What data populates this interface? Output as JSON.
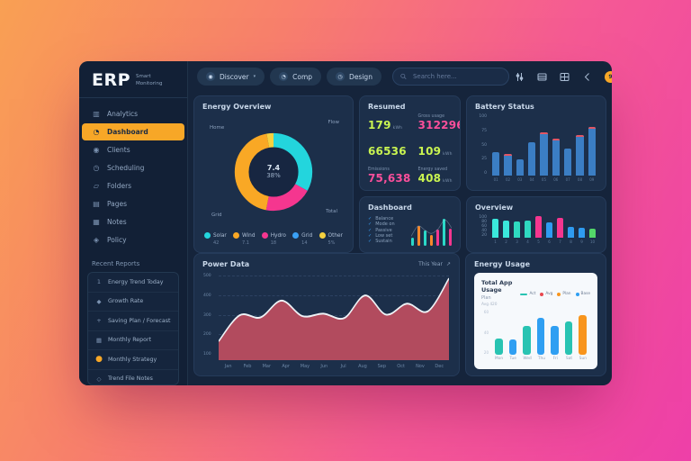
{
  "background": {
    "gradient_from": "#f9a053",
    "gradient_to": "#ee3fa8"
  },
  "app": {
    "logo": "ERP",
    "logo_sub_line1": "Smart",
    "logo_sub_line2": "Monitoring"
  },
  "sidebar": {
    "items": [
      {
        "icon": "analytics-icon",
        "glyph": "▥",
        "label": "Analytics",
        "active": false
      },
      {
        "icon": "dashboard-icon",
        "glyph": "◔",
        "label": "Dashboard",
        "active": true
      },
      {
        "icon": "clients-icon",
        "glyph": "◉",
        "label": "Clients",
        "active": false
      },
      {
        "icon": "scheduling-icon",
        "glyph": "◷",
        "label": "Scheduling",
        "active": false
      },
      {
        "icon": "folders-icon",
        "glyph": "▱",
        "label": "Folders",
        "active": false
      },
      {
        "icon": "pages-icon",
        "glyph": "▤",
        "label": "Pages",
        "active": false
      },
      {
        "icon": "notes-icon",
        "glyph": "▦",
        "label": "Notes",
        "active": false
      },
      {
        "icon": "policy-icon",
        "glyph": "◈",
        "label": "Policy",
        "active": false
      }
    ],
    "section_label": "Recent Reports",
    "report_items": [
      {
        "icon": "trend-icon",
        "glyph": "1",
        "label": "Energy Trend Today",
        "accent": false
      },
      {
        "icon": "growth-icon",
        "glyph": "◆",
        "label": "Growth Rate",
        "accent": false
      },
      {
        "icon": "entry-icon",
        "glyph": "+",
        "label": "Saving Plan / Forecast",
        "accent": false
      },
      {
        "icon": "report-icon",
        "glyph": "▦",
        "label": "Monthly Report",
        "accent": false
      },
      {
        "icon": "strategy-icon",
        "glyph": "●",
        "label": "Monthly Strategy",
        "accent": true
      },
      {
        "icon": "files-icon",
        "glyph": "◇",
        "label": "Trend File Notes",
        "accent": false
      }
    ]
  },
  "topbar": {
    "buttons": [
      {
        "icon": "globe-icon",
        "glyph": "◉",
        "label": "Discover",
        "caret": "▾"
      },
      {
        "icon": "chat-icon",
        "glyph": "◔",
        "label": "Comp",
        "caret": ""
      },
      {
        "icon": "clock-icon",
        "glyph": "◷",
        "label": "Design",
        "caret": ""
      }
    ],
    "search_placeholder": "Search here...",
    "badge_count": "9"
  },
  "chart_data": [
    {
      "id": "energy-donut",
      "type": "pie",
      "title": "Energy Overview",
      "center_value": "7.4",
      "center_label": "38%",
      "segments": [
        {
          "label": "Flow",
          "value": 33,
          "color": "#23d5dd"
        },
        {
          "label": "Total",
          "value": 20,
          "color": "#f5368f"
        },
        {
          "label": "Grid",
          "value": 44,
          "color": "#f9a825"
        },
        {
          "label": "Peak",
          "value": 3,
          "color": "#f5d13f"
        }
      ],
      "callouts": {
        "top_left": "Home",
        "top_right": "Flow",
        "bottom_right": "Total",
        "bottom_left": "Grid"
      },
      "legend": [
        {
          "label": "Solar",
          "value": "42",
          "color": "#23d5dd"
        },
        {
          "label": "Wind",
          "value": "7.1",
          "color": "#f9a825"
        },
        {
          "label": "Hydro",
          "value": "18",
          "color": "#f5368f"
        },
        {
          "label": "Grid",
          "value": "14",
          "color": "#3aa0f5"
        },
        {
          "label": "Other",
          "value": "5%",
          "color": "#f5d13f"
        }
      ]
    },
    {
      "id": "stats",
      "type": "table",
      "title": "Resumed",
      "cells": [
        {
          "caption": "",
          "value": "179",
          "unit": "kWh",
          "color": "#c9f451"
        },
        {
          "caption": "Gross usage",
          "value": "312296",
          "unit": "",
          "color": "#fb4f9b"
        },
        {
          "caption": "",
          "value": "66536",
          "unit": "",
          "color": "#c9f451"
        },
        {
          "caption": "",
          "value": "109",
          "unit": "kWh",
          "color": "#c9f451"
        },
        {
          "caption": "Emissions",
          "value": "75,638",
          "unit": "",
          "color": "#fb4f9b"
        },
        {
          "caption": "Energy saved",
          "value": "408",
          "unit": "kWh",
          "color": "#c9f451"
        }
      ]
    },
    {
      "id": "mini-bars",
      "type": "bar",
      "title": "Dashboard",
      "list": [
        "Balance",
        "Mode on",
        "Passive",
        "Low set",
        "Sustain"
      ],
      "values": [
        25,
        62,
        48,
        35,
        52,
        85,
        55
      ],
      "colors": [
        "#2bd9c8",
        "#f9882b",
        "#2bd9c8",
        "#f9882b",
        "#f5368f",
        "#2bd9c8",
        "#f5368f"
      ],
      "ylim": [
        0,
        100
      ]
    },
    {
      "id": "battery-bars",
      "type": "bar",
      "title": "Battery Status",
      "yticks": [
        "100",
        "75",
        "50",
        "25",
        "0"
      ],
      "categories": [
        "01",
        "02",
        "03",
        "04",
        "05",
        "06",
        "07",
        "08",
        "09"
      ],
      "values": [
        38,
        35,
        27,
        55,
        70,
        60,
        44,
        66,
        80
      ],
      "caps": [
        0,
        1,
        0,
        0,
        1,
        1,
        0,
        1,
        1
      ],
      "bar_color": "#3b7ec4",
      "cap_color": "#e25563",
      "ylim": [
        0,
        100
      ]
    },
    {
      "id": "overview-bars",
      "type": "bar",
      "title": "Overview",
      "yticks": [
        "100",
        "80",
        "60",
        "40",
        "20"
      ],
      "categories": [
        "1",
        "2",
        "3",
        "4",
        "5",
        "6",
        "7",
        "8",
        "9",
        "10"
      ],
      "values": [
        85,
        78,
        72,
        76,
        95,
        70,
        90,
        50,
        45,
        40
      ],
      "colors": [
        "#3ae8dc",
        "#3ae8dc",
        "#2fd9c0",
        "#2fd9c0",
        "#f5368f",
        "#2f9bf0",
        "#f5368f",
        "#2f9bf0",
        "#2f9bf0",
        "#53d769"
      ],
      "ylim": [
        0,
        100
      ]
    },
    {
      "id": "power-area",
      "type": "area",
      "title": "Power Data",
      "range_label": "This Year",
      "expand_icon": "↗",
      "yticks": [
        "500",
        "400",
        "300",
        "200",
        "100"
      ],
      "ylim": [
        0,
        500
      ],
      "x": [
        "Jan",
        "Feb",
        "Mar",
        "Apr",
        "May",
        "Jun",
        "Jul",
        "Aug",
        "Sep",
        "Oct",
        "Nov",
        "Dec"
      ],
      "values": [
        110,
        262,
        250,
        348,
        258,
        272,
        246,
        378,
        266,
        330,
        286,
        478
      ],
      "fill_color": "#b24b5e",
      "line_color": "#eef2f6"
    },
    {
      "id": "usage-card",
      "type": "bar",
      "title": "Energy Usage",
      "card_title": "Total App Usage",
      "card_subtitle": "Plan",
      "card_caption": "Avg 420",
      "legend": [
        {
          "label": "Act",
          "color": "#28c3b2",
          "shape": "line"
        },
        {
          "label": "Avg",
          "color": "#e8484f",
          "shape": "dot"
        },
        {
          "label": "Plan",
          "color": "#f8951d",
          "shape": "dot"
        },
        {
          "label": "Base",
          "color": "#2f9ff2",
          "shape": "dot"
        }
      ],
      "yticks": [
        "60",
        "40",
        "20"
      ],
      "categories": [
        "Mon",
        "Tue",
        "Wed",
        "Thu",
        "Fri",
        "Sat",
        "Sun"
      ],
      "values": [
        25,
        24,
        45,
        58,
        45,
        52,
        62
      ],
      "colors": [
        "#28c3b2",
        "#2f9ff2",
        "#28c3b2",
        "#2f9ff2",
        "#2f9ff2",
        "#28c3b2",
        "#f8951d"
      ],
      "ylim": [
        0,
        70
      ]
    }
  ]
}
